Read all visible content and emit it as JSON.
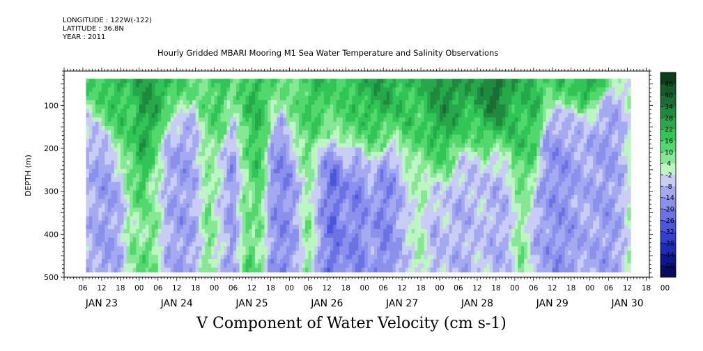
{
  "meta": {
    "longitude": "LONGITUDE : 122W(-122)",
    "latitude": "LATITUDE : 36.8N",
    "year": "YEAR : 2011"
  },
  "chart_data": {
    "type": "heatmap",
    "title": "Hourly Gridded MBARI Mooring M1 Sea Water Temperature and Salinity Observations",
    "footer_label": "V Component of Water Velocity (cm s-1)",
    "ylabel": "DEPTH (m)",
    "xlabel": "",
    "y_axis": {
      "range": [
        20,
        500
      ],
      "inverted": true,
      "ticks": [
        100,
        200,
        300,
        400,
        500
      ],
      "tick_labels": [
        "100",
        "200",
        "300",
        "400",
        "500"
      ]
    },
    "x_axis": {
      "range_hours": [
        0,
        187
      ],
      "hour_ticks": [
        "06",
        "12",
        "18",
        "00",
        "06",
        "12",
        "18",
        "00",
        "06",
        "12",
        "18",
        "00",
        "06",
        "12",
        "18",
        "00",
        "06",
        "12",
        "18",
        "00",
        "06",
        "12",
        "18",
        "00",
        "06",
        "12",
        "18",
        "00",
        "06",
        "12",
        "18",
        "00"
      ],
      "day_labels": [
        "JAN 23",
        "JAN 24",
        "JAN 25",
        "JAN 26",
        "JAN 27",
        "JAN 28",
        "JAN 29",
        "JAN 30"
      ]
    },
    "data_extent": {
      "x_start_hour": 7,
      "x_end_hour": 181,
      "depth_top": 38,
      "depth_bottom": 486
    },
    "colorbar": {
      "labels": [
        "46",
        "40",
        "34",
        "28",
        "22",
        "16",
        "10",
        "4",
        "-2",
        "-8",
        "-14",
        "-20",
        "-26",
        "-32",
        "-38",
        "-44",
        "-50"
      ],
      "levels": [
        {
          "v": 49,
          "c": "#0b3d19"
        },
        {
          "v": 43,
          "c": "#14592a"
        },
        {
          "v": 37,
          "c": "#1a6e33"
        },
        {
          "v": 31,
          "c": "#1f8a3e"
        },
        {
          "v": 25,
          "c": "#27a84a"
        },
        {
          "v": 19,
          "c": "#30c556"
        },
        {
          "v": 13,
          "c": "#52d86c"
        },
        {
          "v": 7,
          "c": "#86e894"
        },
        {
          "v": 1,
          "c": "#bdf5c3"
        },
        {
          "v": -5,
          "c": "#c9ccf5"
        },
        {
          "v": -11,
          "c": "#a5aaf0"
        },
        {
          "v": -17,
          "c": "#8a90eb"
        },
        {
          "v": -23,
          "c": "#6b73e4"
        },
        {
          "v": -29,
          "c": "#4c56dc"
        },
        {
          "v": -35,
          "c": "#3240d0"
        },
        {
          "v": -41,
          "c": "#1d2cb8"
        },
        {
          "v": -47,
          "c": "#0d168c"
        },
        {
          "v": -53,
          "c": "#070c5e"
        }
      ]
    },
    "columns": [
      {
        "hour": 7,
        "top_v": 12,
        "transition_depth": 110,
        "deep_v": -8
      },
      {
        "hour": 13,
        "top_v": 18,
        "transition_depth": 150,
        "deep_v": -14
      },
      {
        "hour": 18,
        "top_v": 22,
        "transition_depth": 230,
        "deep_v": -10
      },
      {
        "hour": 21,
        "top_v": 16,
        "transition_depth": 330,
        "deep_v": 6
      },
      {
        "hour": 25,
        "top_v": 28,
        "transition_depth": 420,
        "deep_v": 12
      },
      {
        "hour": 29,
        "top_v": 26,
        "transition_depth": 250,
        "deep_v": 8
      },
      {
        "hour": 33,
        "top_v": 20,
        "transition_depth": 140,
        "deep_v": -10
      },
      {
        "hour": 38,
        "top_v": 14,
        "transition_depth": 110,
        "deep_v": -14
      },
      {
        "hour": 42,
        "top_v": 10,
        "transition_depth": 90,
        "deep_v": -10
      },
      {
        "hour": 46,
        "top_v": 12,
        "transition_depth": 260,
        "deep_v": 10
      },
      {
        "hour": 50,
        "top_v": 20,
        "transition_depth": 200,
        "deep_v": -4
      },
      {
        "hour": 54,
        "top_v": 6,
        "transition_depth": 120,
        "deep_v": -16
      },
      {
        "hour": 58,
        "top_v": 18,
        "transition_depth": 250,
        "deep_v": 10
      },
      {
        "hour": 62,
        "top_v": 22,
        "transition_depth": 480,
        "deep_v": 18
      },
      {
        "hour": 66,
        "top_v": 12,
        "transition_depth": 130,
        "deep_v": -14
      },
      {
        "hour": 70,
        "top_v": 8,
        "transition_depth": 110,
        "deep_v": -18
      },
      {
        "hour": 74,
        "top_v": 10,
        "transition_depth": 200,
        "deep_v": -12
      },
      {
        "hour": 78,
        "top_v": 18,
        "transition_depth": 280,
        "deep_v": 8
      },
      {
        "hour": 82,
        "top_v": 20,
        "transition_depth": 180,
        "deep_v": -14
      },
      {
        "hour": 86,
        "top_v": 14,
        "transition_depth": 170,
        "deep_v": -24
      },
      {
        "hour": 90,
        "top_v": 18,
        "transition_depth": 200,
        "deep_v": -16
      },
      {
        "hour": 94,
        "top_v": 22,
        "transition_depth": 190,
        "deep_v": -20
      },
      {
        "hour": 98,
        "top_v": 24,
        "transition_depth": 230,
        "deep_v": -12
      },
      {
        "hour": 102,
        "top_v": 26,
        "transition_depth": 200,
        "deep_v": -20
      },
      {
        "hour": 106,
        "top_v": 22,
        "transition_depth": 180,
        "deep_v": -14
      },
      {
        "hour": 110,
        "top_v": 20,
        "transition_depth": 250,
        "deep_v": -4
      },
      {
        "hour": 114,
        "top_v": 18,
        "transition_depth": 260,
        "deep_v": 4
      },
      {
        "hour": 118,
        "top_v": 28,
        "transition_depth": 270,
        "deep_v": -10
      },
      {
        "hour": 122,
        "top_v": 30,
        "transition_depth": 280,
        "deep_v": -6
      },
      {
        "hour": 126,
        "top_v": 28,
        "transition_depth": 220,
        "deep_v": -10
      },
      {
        "hour": 130,
        "top_v": 24,
        "transition_depth": 200,
        "deep_v": -8
      },
      {
        "hour": 134,
        "top_v": 30,
        "transition_depth": 230,
        "deep_v": -6
      },
      {
        "hour": 138,
        "top_v": 40,
        "transition_depth": 200,
        "deep_v": -10
      },
      {
        "hour": 142,
        "top_v": 26,
        "transition_depth": 230,
        "deep_v": -8
      },
      {
        "hour": 146,
        "top_v": 20,
        "transition_depth": 350,
        "deep_v": 10
      },
      {
        "hour": 150,
        "top_v": 22,
        "transition_depth": 300,
        "deep_v": -8
      },
      {
        "hour": 154,
        "top_v": 14,
        "transition_depth": 110,
        "deep_v": -14
      },
      {
        "hour": 158,
        "top_v": 18,
        "transition_depth": 100,
        "deep_v": -16
      },
      {
        "hour": 162,
        "top_v": 14,
        "transition_depth": 110,
        "deep_v": -14
      },
      {
        "hour": 166,
        "top_v": 24,
        "transition_depth": 120,
        "deep_v": -10
      },
      {
        "hour": 170,
        "top_v": 26,
        "transition_depth": 100,
        "deep_v": -12
      },
      {
        "hour": 174,
        "top_v": 6,
        "transition_depth": 60,
        "deep_v": -14
      },
      {
        "hour": 178,
        "top_v": -4,
        "transition_depth": 40,
        "deep_v": -10
      },
      {
        "hour": 181,
        "top_v": -6,
        "transition_depth": 40,
        "deep_v": 2
      }
    ]
  }
}
